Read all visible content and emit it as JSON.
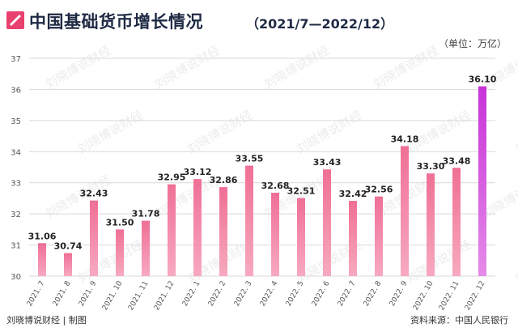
{
  "header": {
    "title": "中国基础货币增长情况",
    "subtitle": "（2021/7—2022/12）",
    "unit": "（单位：万亿）"
  },
  "footer": {
    "credit": "刘晓博说财经 | 制图",
    "source": "资料来源：中国人民银行"
  },
  "watermark": "刘晓博说财经",
  "colors": {
    "bar": "#ef6f95",
    "bar_highlight": "#c832d8",
    "title_mark": "#e8406f",
    "grid": "#d9d9d9",
    "axis_text": "#555555"
  },
  "chart_data": {
    "type": "bar",
    "categories": [
      "2021. 7",
      "2021. 8",
      "2021. 9",
      "2021. 10",
      "2021. 11",
      "2021. 12",
      "2022. 1",
      "2022. 2",
      "2022. 3",
      "2022. 4",
      "2022. 5",
      "2022. 6",
      "2022. 7",
      "2022. 8",
      "2022. 9",
      "2022. 10",
      "2022. 11",
      "2022. 12"
    ],
    "values": [
      31.06,
      30.74,
      32.43,
      31.5,
      31.78,
      32.95,
      33.12,
      32.86,
      33.55,
      32.68,
      32.51,
      33.43,
      32.42,
      32.56,
      34.18,
      33.3,
      33.48,
      36.1
    ],
    "value_labels": [
      "31.06",
      "30.74",
      "32.43",
      "31.50",
      "31.78",
      "32.95",
      "33.12",
      "32.86",
      "33.55",
      "32.68",
      "32.51",
      "33.43",
      "32.42",
      "32.56",
      "34.18",
      "33.30",
      "33.48",
      "36.10"
    ],
    "highlight_index": 17,
    "ylim": [
      30,
      37
    ],
    "yticks": [
      30,
      31,
      32,
      33,
      34,
      35,
      36,
      37
    ],
    "grid": true,
    "legend": "none"
  }
}
